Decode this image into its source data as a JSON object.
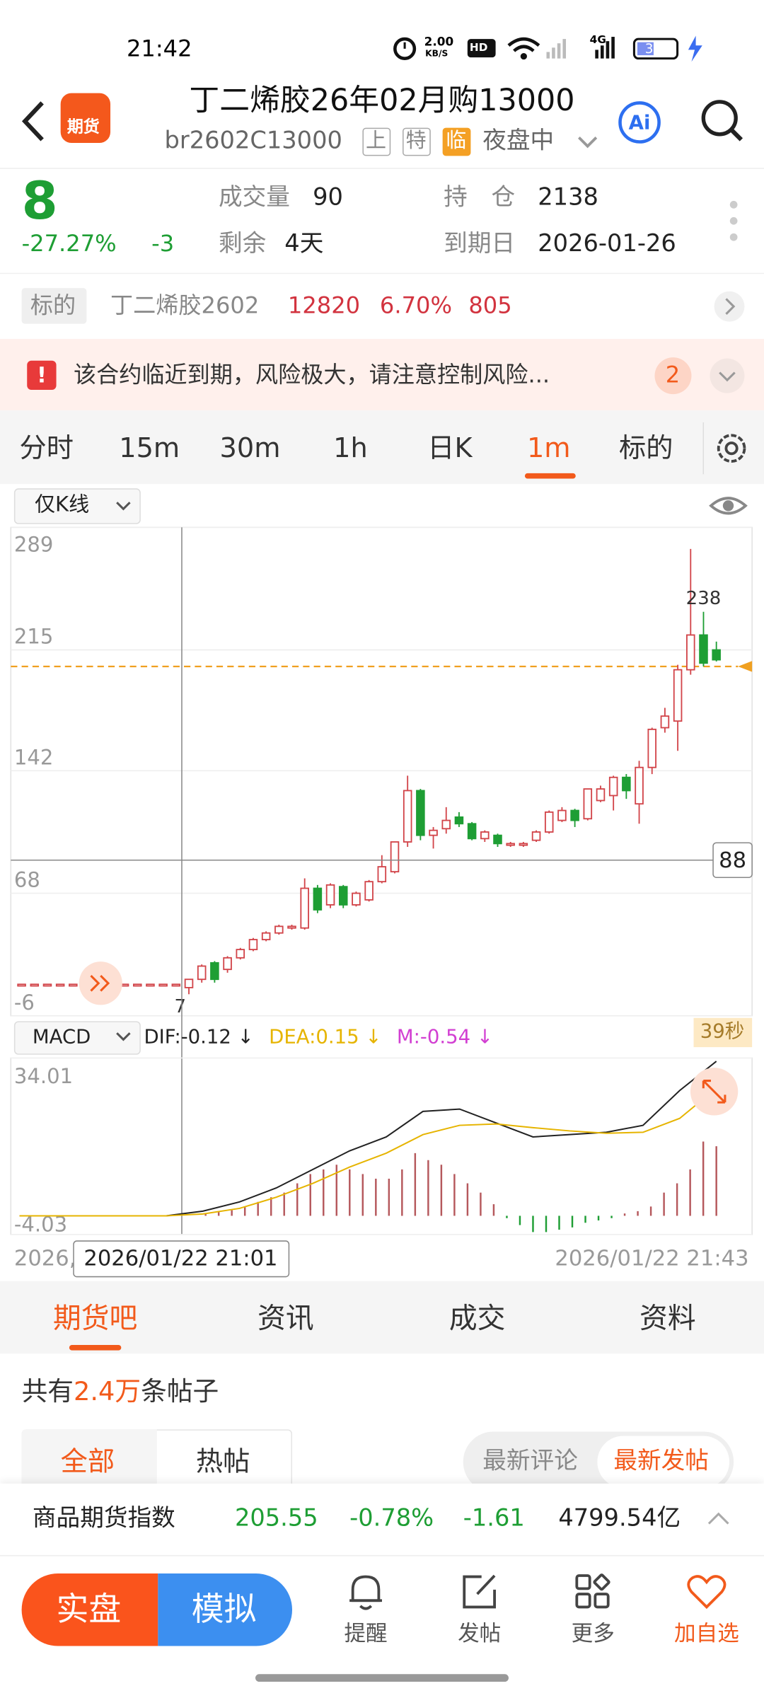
{
  "status_bar": {
    "time": "21:42",
    "speed": "2.00",
    "speed_unit": "KB/S",
    "hd": "HD",
    "network": "4G",
    "battery": "34"
  },
  "header": {
    "logo": "期货",
    "title": "丁二烯胶26年02月购13000",
    "code": "br2602C13000",
    "tags": [
      "上",
      "特",
      "临"
    ],
    "session": "夜盘中",
    "ai": "Ai"
  },
  "quote": {
    "price": "8",
    "change_pct": "-27.27%",
    "change": "-3",
    "volume_label": "成交量",
    "volume": "90",
    "position_label": "持　仓",
    "position": "2138",
    "remaining_label": "剩余",
    "remaining": "4天",
    "expiry_label": "到期日",
    "expiry": "2026-01-26"
  },
  "underlying": {
    "label": "标的",
    "name": "丁二烯胶2602",
    "price": "12820",
    "change_pct": "6.70%",
    "change": "805"
  },
  "alert": {
    "icon": "!",
    "text": "该合约临近到期，风险极大，请注意控制风险...",
    "count": "2"
  },
  "period_tabs": [
    "分时",
    "15m",
    "30m",
    "1h",
    "日K",
    "1m",
    "标的"
  ],
  "chart_mode": "仅K线",
  "chart_data": [
    {
      "type": "candlestick",
      "ylim": [
        -6,
        289
      ],
      "yticks": [
        289,
        215,
        142,
        68,
        -6
      ],
      "reference_line": 205,
      "crosshair": 88,
      "up_color": "#d2454a",
      "down_color": "#1e9e34",
      "high_label_index": 53,
      "low_label_index": 13,
      "open": [
        13,
        13,
        13,
        13,
        13,
        13,
        13,
        13,
        13,
        13,
        13,
        13,
        13,
        11,
        16,
        26,
        22,
        29,
        34,
        40,
        44,
        47,
        47,
        71,
        61,
        72,
        61,
        64,
        75,
        81,
        99,
        130,
        103,
        107,
        114,
        110,
        101,
        103,
        98,
        98,
        100,
        105,
        112,
        118,
        113,
        124,
        127,
        138,
        122,
        144,
        168,
        172,
        203,
        224,
        215
      ],
      "high": [
        13,
        13,
        13,
        13,
        13,
        13,
        13,
        13,
        13,
        13,
        13,
        13,
        13,
        16,
        25,
        27,
        30,
        35,
        41,
        45,
        49,
        49,
        77,
        73,
        74,
        73,
        69,
        76,
        91,
        99,
        139,
        131,
        108,
        120,
        117,
        111,
        106,
        104,
        99,
        99,
        106,
        118,
        120,
        119,
        131,
        133,
        139,
        140,
        148,
        168,
        180,
        206,
        276,
        238,
        220
      ],
      "low": [
        13,
        13,
        13,
        13,
        13,
        13,
        13,
        13,
        13,
        13,
        13,
        13,
        13,
        7,
        14,
        14,
        20,
        28,
        33,
        39,
        43,
        46,
        46,
        56,
        59,
        59,
        60,
        63,
        74,
        80,
        96,
        100,
        95,
        104,
        108,
        100,
        99,
        96,
        96,
        96,
        99,
        104,
        111,
        108,
        112,
        123,
        118,
        125,
        110,
        140,
        165,
        154,
        200,
        205,
        208
      ],
      "close": [
        13,
        13,
        13,
        13,
        13,
        13,
        13,
        13,
        13,
        13,
        13,
        13,
        13,
        16,
        24,
        16,
        29,
        34,
        40,
        44,
        48,
        48,
        71,
        58,
        73,
        61,
        68,
        75,
        84,
        99,
        130,
        103,
        106,
        112,
        110,
        101,
        105,
        98,
        98,
        98,
        105,
        117,
        118,
        112,
        131,
        131,
        138,
        130,
        144,
        167,
        175,
        203,
        224,
        207,
        209
      ]
    },
    {
      "type": "macd",
      "label": "MACD",
      "ylim": [
        -4.03,
        34.01
      ],
      "yticks": [
        34.01,
        -4.03
      ],
      "series": [
        {
          "name": "DIF:-0.12 ↓",
          "color": "#222222",
          "values": [
            0,
            0,
            0,
            0,
            0,
            1,
            3,
            6,
            10,
            14,
            17,
            22.5,
            23,
            20,
            17,
            17.5,
            18,
            19.5,
            27,
            33.3
          ]
        },
        {
          "name": "DEA:0.15 ↓",
          "color": "#e6b400",
          "values": [
            0,
            0,
            0,
            0,
            0,
            0.4,
            1.6,
            4,
            7,
            10.5,
            13.5,
            17.5,
            19.5,
            19.8,
            19,
            18.3,
            17.8,
            18,
            21,
            27.5
          ]
        },
        {
          "name": "M:-0.54 ↓",
          "color": "#d23fd2",
          "up_color": "#b5585c",
          "down_color": "#1e9e34",
          "values": [
            0.5,
            0.8,
            1.2,
            2,
            3,
            4,
            5,
            7,
            9,
            10,
            11,
            10,
            9,
            8,
            8,
            10,
            13.5,
            12,
            11,
            9,
            7,
            5,
            2.5,
            -0.5,
            -2,
            -3.5,
            -3.5,
            -3,
            -2.5,
            -1.5,
            -1,
            -0.5,
            0.5,
            1,
            2,
            5,
            7,
            10,
            16,
            15
          ]
        }
      ]
    }
  ],
  "x_axis": {
    "start": "2026,",
    "cursor": "2026/01/22 21:01",
    "end": "2026/01/22 21:43"
  },
  "countdown": "39秒",
  "content_tabs": [
    "期货吧",
    "资讯",
    "成交",
    "资料"
  ],
  "posts": {
    "prefix": "共有",
    "count": "2.4万",
    "suffix": "条帖子"
  },
  "filters": [
    "全部",
    "热帖"
  ],
  "sort": [
    "最新评论",
    "最新发帖"
  ],
  "index_bar": {
    "name": "商品期货指数",
    "value": "205.55",
    "pct": "-0.78%",
    "change": "-1.61",
    "amount": "4799.54亿"
  },
  "bottom_nav": {
    "real": "实盘",
    "sim": "模拟",
    "items": [
      "提醒",
      "发帖",
      "更多",
      "加自选"
    ]
  }
}
